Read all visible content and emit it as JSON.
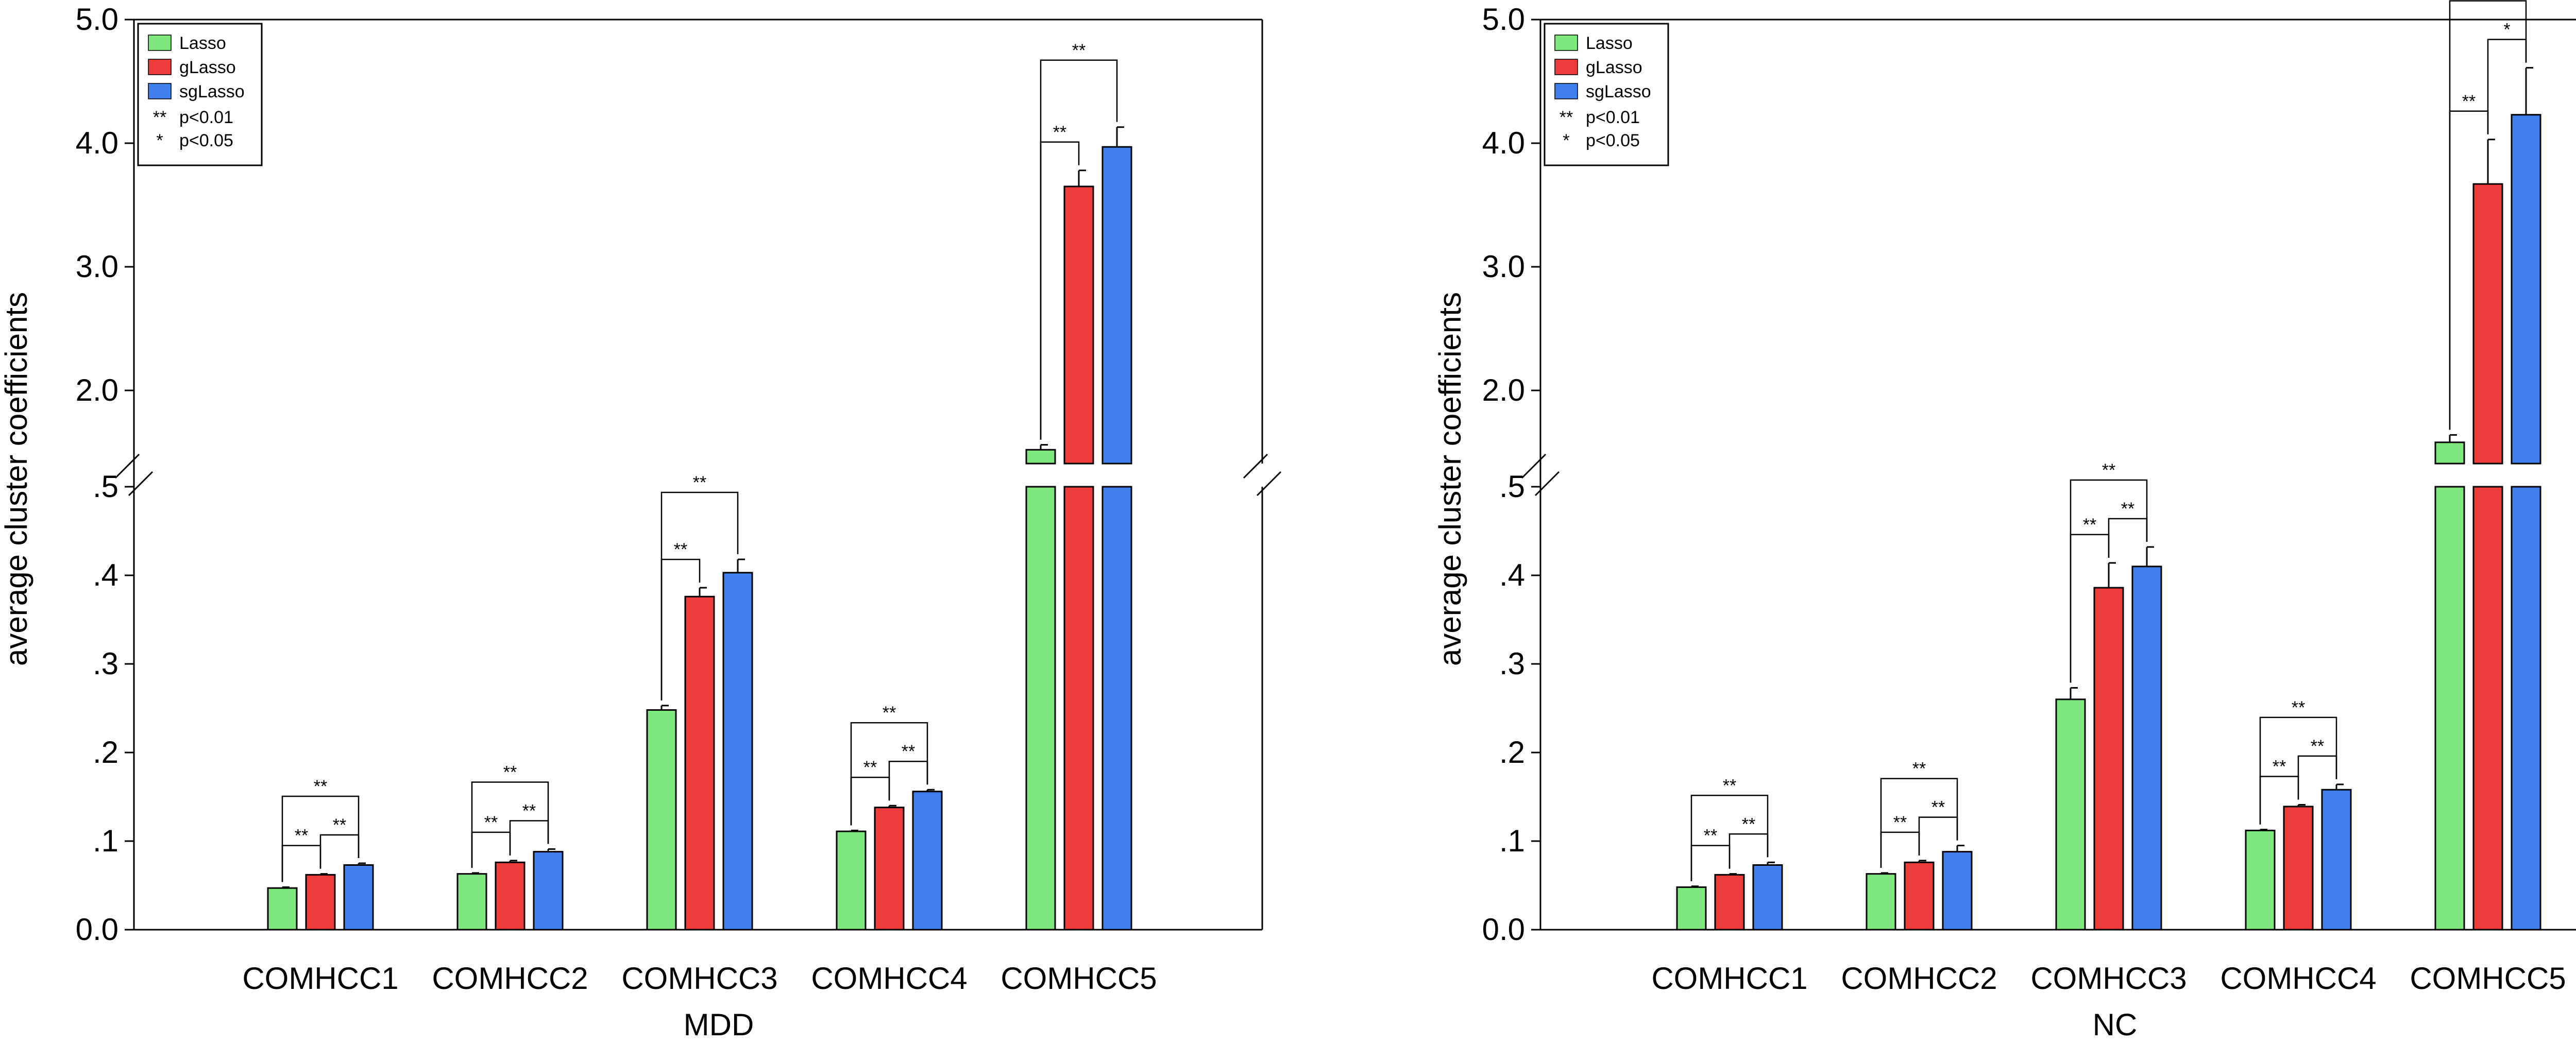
{
  "colors": {
    "Lasso": "#7ee87e",
    "gLasso": "#ee3b3b",
    "sgLasso": "#3f80ee"
  },
  "legend": {
    "series": [
      "Lasso",
      "gLasso",
      "sgLasso"
    ],
    "notes": [
      {
        "symbol": "**",
        "text": "p<0.01"
      },
      {
        "symbol": "*",
        "text": "p<0.05"
      }
    ]
  },
  "chart_data": [
    {
      "type": "bar",
      "title": "MDD",
      "xlabel": "MDD",
      "ylabel": "average cluster coefficients",
      "categories": [
        "COMHCC1",
        "COMHCC2",
        "COMHCC3",
        "COMHCC4",
        "COMHCC5"
      ],
      "ylim_lower": [
        0,
        0.5
      ],
      "ylim_upper": [
        1.4,
        5.0
      ],
      "yticks_lower": [
        ".5",
        ".4",
        ".3",
        ".2",
        ".1",
        "0.0"
      ],
      "yticks_upper": [
        "2.0",
        "3.0",
        "4.0",
        "5.0"
      ],
      "axis_break": true,
      "legend_position": "top-left",
      "series": [
        {
          "name": "Lasso",
          "values": [
            0.047,
            0.063,
            0.248,
            0.111,
            1.52
          ],
          "errors": [
            0.001,
            0.001,
            0.005,
            0.001,
            0.04
          ]
        },
        {
          "name": "gLasso",
          "values": [
            0.062,
            0.076,
            0.376,
            0.138,
            3.65
          ],
          "errors": [
            0.001,
            0.002,
            0.01,
            0.002,
            0.13
          ]
        },
        {
          "name": "sgLasso",
          "values": [
            0.073,
            0.088,
            0.403,
            0.156,
            3.97
          ],
          "errors": [
            0.002,
            0.003,
            0.015,
            0.002,
            0.16
          ]
        }
      ],
      "significance": [
        [
          "**",
          "**",
          "**"
        ],
        [
          "**",
          "**",
          "**"
        ],
        [
          "**",
          "",
          "**"
        ],
        [
          "**",
          "**",
          "**"
        ],
        [
          "**",
          "",
          "**"
        ]
      ]
    },
    {
      "type": "bar",
      "title": "NC",
      "xlabel": "NC",
      "ylabel": "average cluster coefficients",
      "categories": [
        "COMHCC1",
        "COMHCC2",
        "COMHCC3",
        "COMHCC4",
        "COMHCC5"
      ],
      "ylim_lower": [
        0,
        0.5
      ],
      "ylim_upper": [
        1.4,
        5.0
      ],
      "yticks_lower": [
        ".5",
        ".4",
        ".3",
        ".2",
        ".1",
        "0.0"
      ],
      "yticks_upper": [
        "2.0",
        "3.0",
        "4.0",
        "5.0"
      ],
      "axis_break": true,
      "legend_position": "top-left",
      "series": [
        {
          "name": "Lasso",
          "values": [
            0.048,
            0.063,
            0.26,
            0.112,
            1.58
          ],
          "errors": [
            0.001,
            0.001,
            0.013,
            0.001,
            0.06
          ]
        },
        {
          "name": "gLasso",
          "values": [
            0.062,
            0.076,
            0.386,
            0.139,
            3.67
          ],
          "errors": [
            0.001,
            0.002,
            0.028,
            0.002,
            0.36
          ]
        },
        {
          "name": "sgLasso",
          "values": [
            0.073,
            0.088,
            0.41,
            0.158,
            4.23
          ],
          "errors": [
            0.003,
            0.007,
            0.022,
            0.006,
            0.38
          ]
        }
      ],
      "significance": [
        [
          "**",
          "**",
          "**"
        ],
        [
          "**",
          "**",
          "**"
        ],
        [
          "**",
          "**",
          "**"
        ],
        [
          "**",
          "**",
          "**"
        ],
        [
          "**",
          "*",
          "**"
        ]
      ]
    }
  ]
}
